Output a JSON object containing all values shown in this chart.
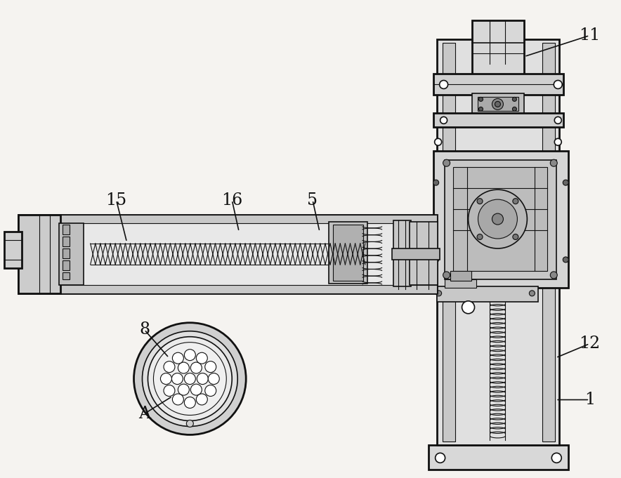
{
  "bg_color": "#f5f3f0",
  "line_color": "#111111",
  "lw_thin": 0.8,
  "lw_med": 1.2,
  "lw_thick": 2.0,
  "fig_w": 8.84,
  "fig_h": 6.81,
  "dpi": 100
}
